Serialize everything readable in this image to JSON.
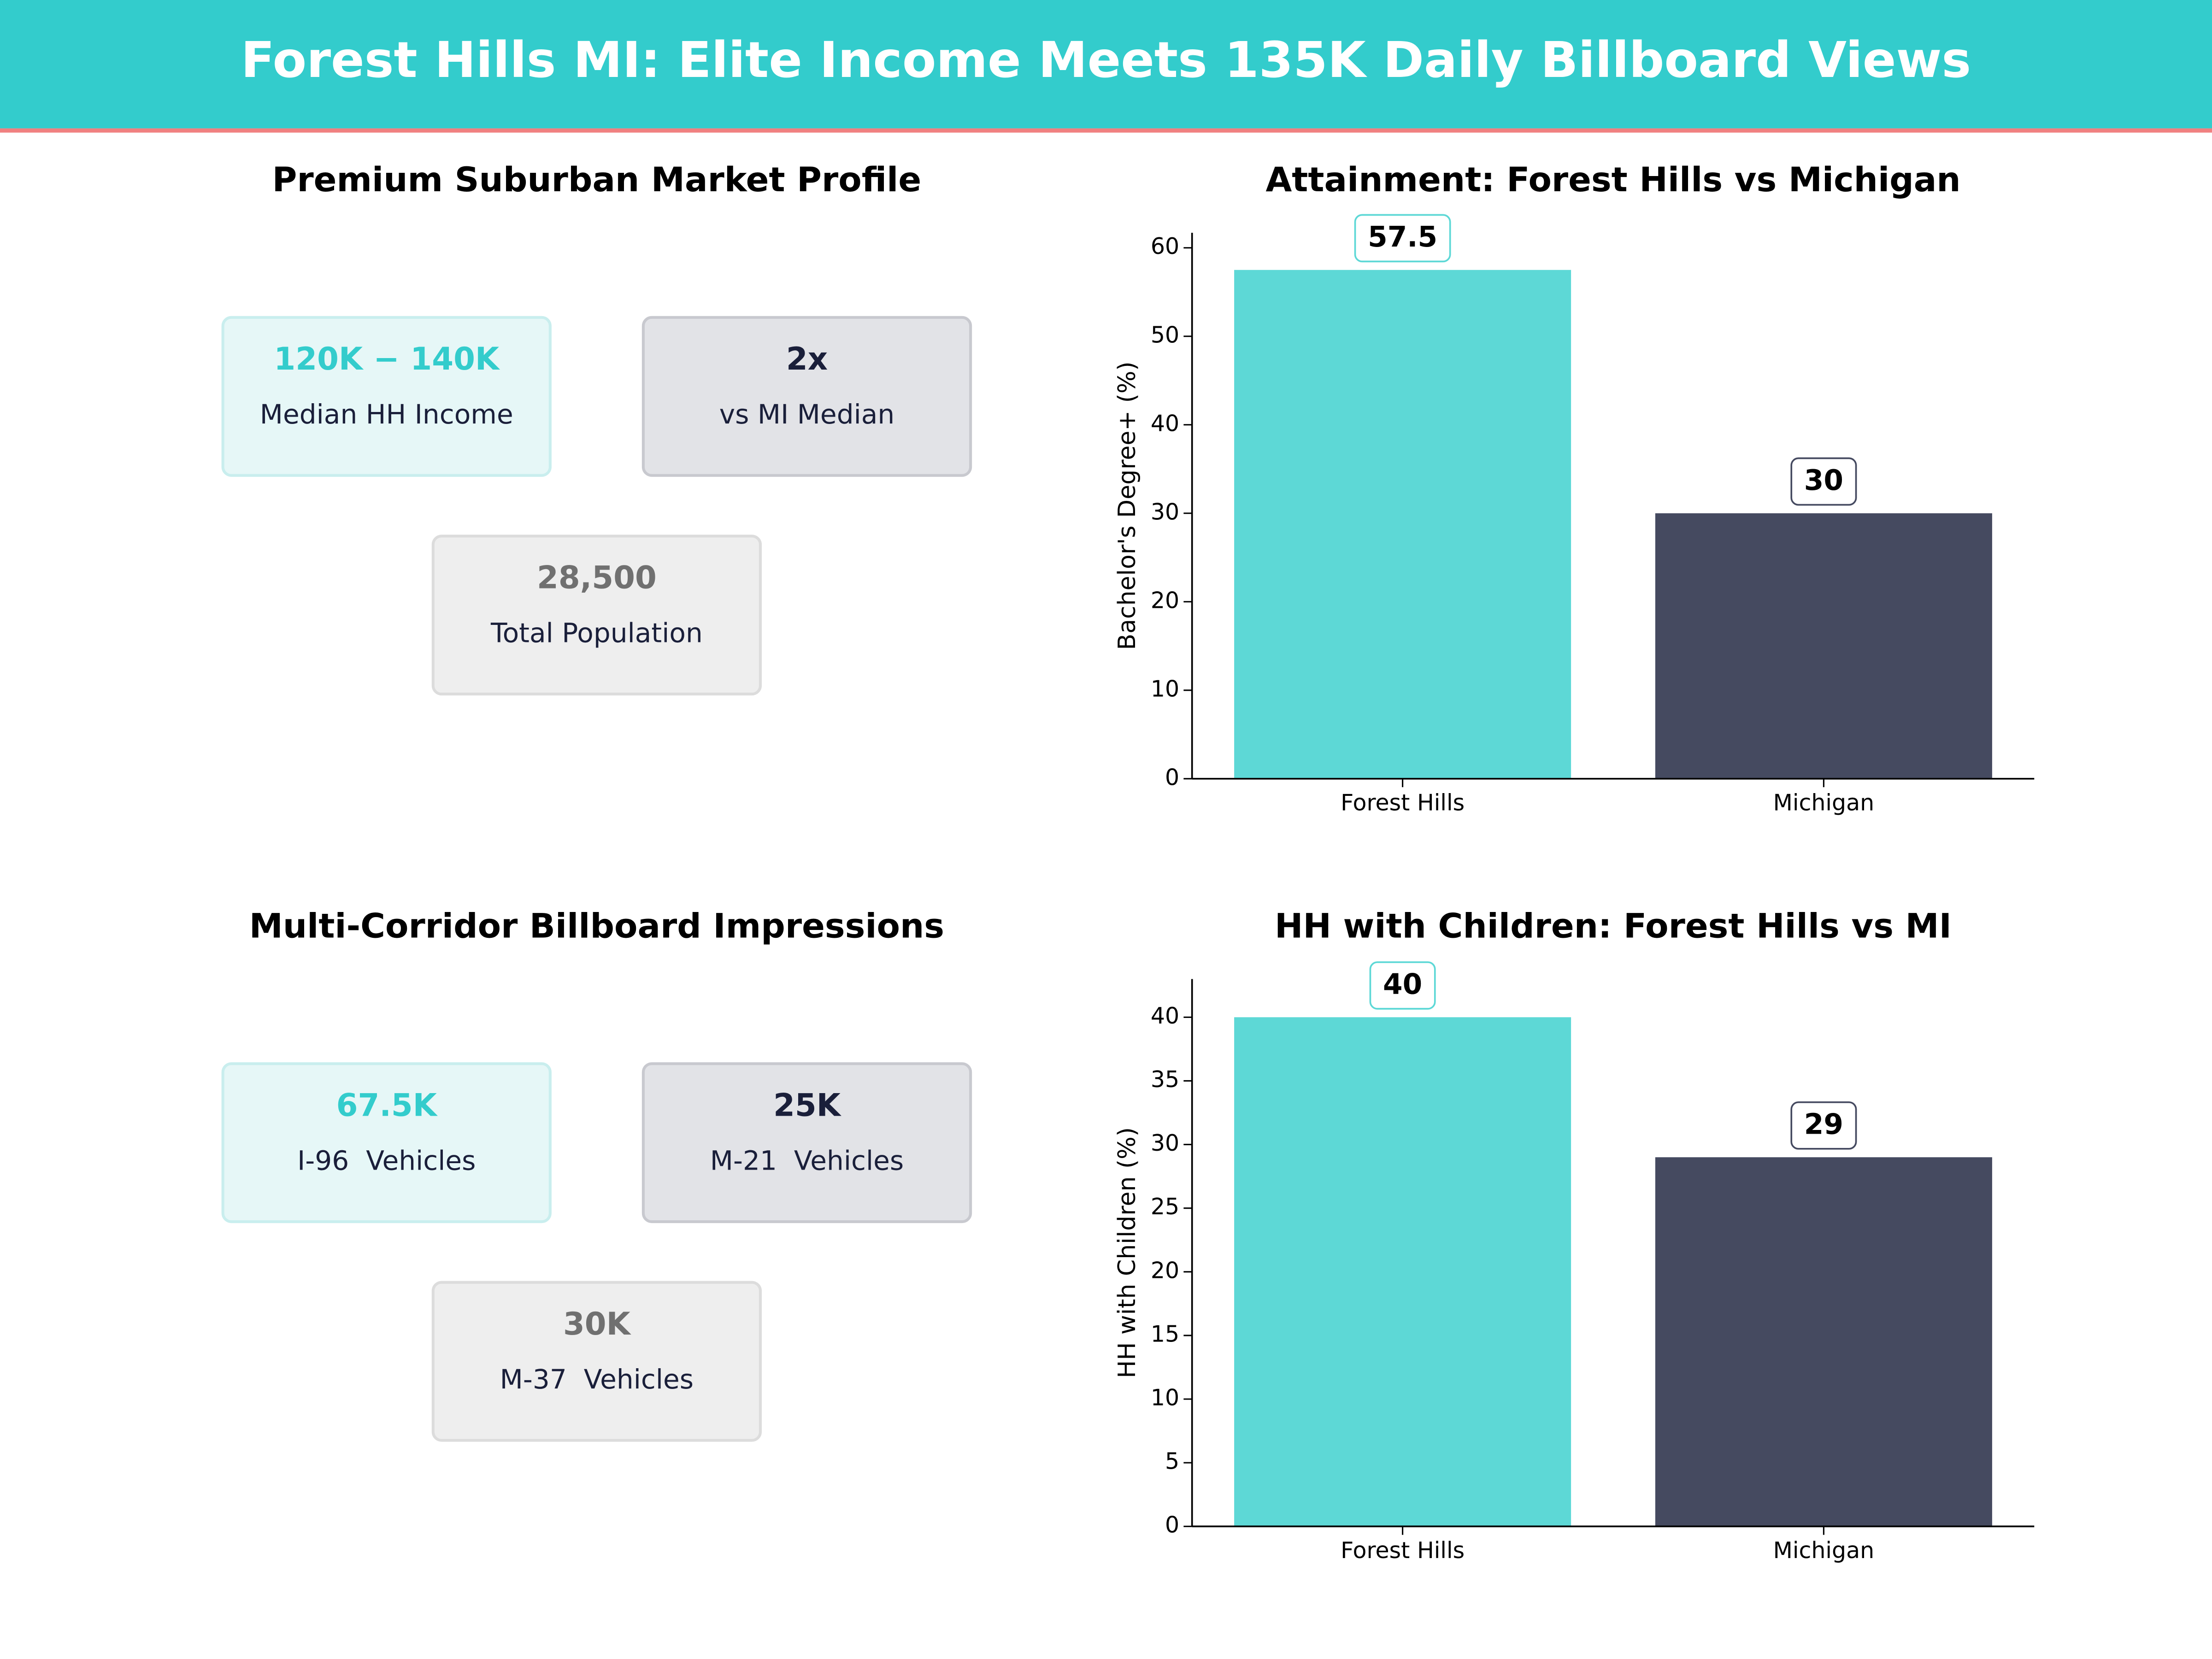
{
  "title": "Forest Hills MI: Elite Income Meets 135K Daily Billboard Views",
  "kpi_panels": [
    {
      "title": "Premium Suburban Market Profile",
      "cards": [
        {
          "value": "120K − 140K",
          "label": "Median HH Income"
        },
        {
          "value": "2x",
          "label": "vs MI Median"
        },
        {
          "value": "28,500",
          "label": "Total Population"
        }
      ]
    },
    {
      "title": "Multi-Corridor Billboard Impressions",
      "cards": [
        {
          "value": "67.5K",
          "label": "I-96  Vehicles"
        },
        {
          "value": "25K",
          "label": "M-21  Vehicles"
        },
        {
          "value": "30K",
          "label": "M-37  Vehicles"
        }
      ]
    }
  ],
  "chart_data": [
    {
      "type": "bar",
      "title": "Attainment: Forest Hills vs Michigan",
      "y_label": "Bachelor's Degree+ (%)",
      "categories": [
        "Forest Hills",
        "Michigan"
      ],
      "values": [
        57.5,
        30
      ],
      "colors": [
        "#5dd8d6",
        "#454a60"
      ],
      "ylim": [
        0,
        61.7
      ],
      "yticks": [
        0,
        10,
        20,
        30,
        40,
        50,
        60
      ]
    },
    {
      "type": "bar",
      "title": "HH with Children: Forest Hills vs MI",
      "y_label": "HH with Children (%)",
      "categories": [
        "Forest Hills",
        "Michigan"
      ],
      "values": [
        40,
        29
      ],
      "colors": [
        "#5dd8d6",
        "#454a60"
      ],
      "ylim": [
        0,
        43
      ],
      "yticks": [
        0,
        5,
        10,
        15,
        20,
        25,
        30,
        35,
        40
      ]
    }
  ]
}
